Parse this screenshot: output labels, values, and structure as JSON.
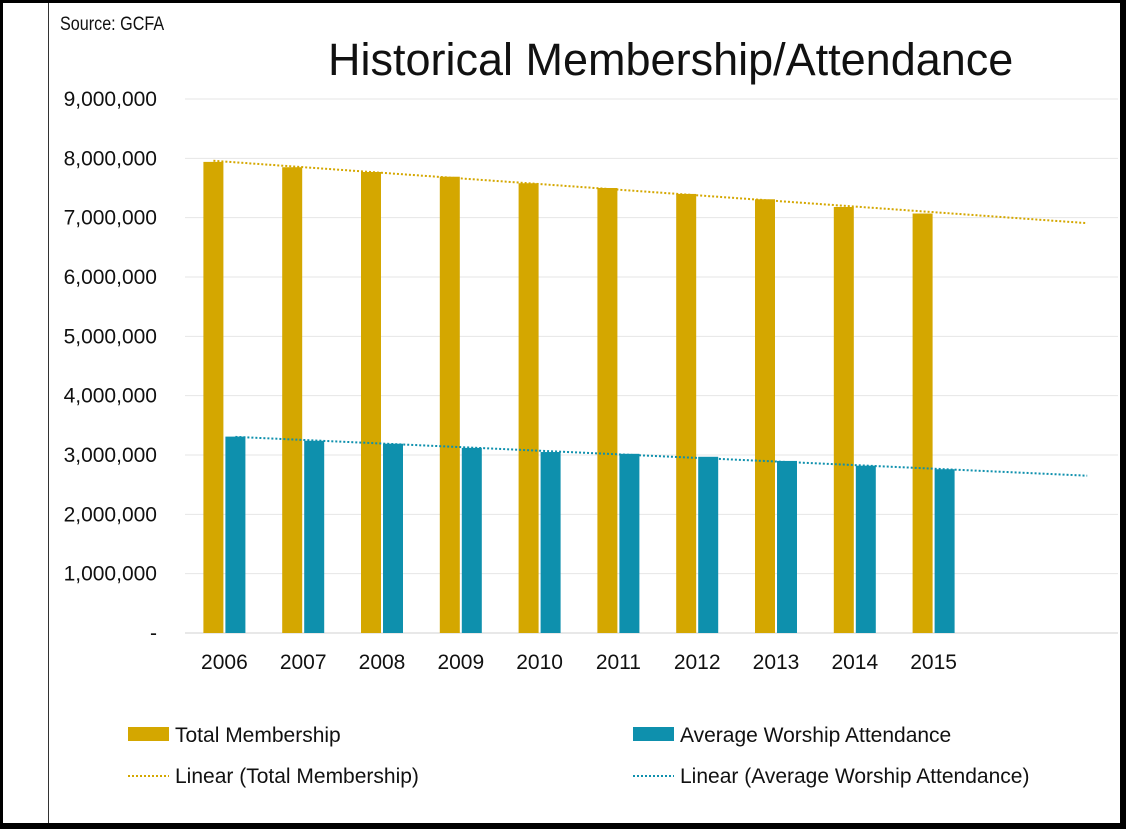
{
  "source": "Source: GCFA",
  "chart_data": {
    "type": "bar",
    "title": "Historical Membership/Attendance",
    "categories": [
      "2006",
      "2007",
      "2008",
      "2009",
      "2010",
      "2011",
      "2012",
      "2013",
      "2014",
      "2015"
    ],
    "series": [
      {
        "name": "Total Membership",
        "color": "#D4A700",
        "values": [
          7940000,
          7850000,
          7770000,
          7690000,
          7580000,
          7500000,
          7400000,
          7310000,
          7180000,
          7070000
        ]
      },
      {
        "name": "Average Worship Attendance",
        "color": "#0E90AD",
        "values": [
          3310000,
          3240000,
          3190000,
          3120000,
          3050000,
          3020000,
          2970000,
          2900000,
          2820000,
          2760000
        ]
      }
    ],
    "trendlines": [
      {
        "name": "Linear (Total Membership)",
        "series": "Total Membership",
        "type": "linear",
        "style": "dotted",
        "forecast_forward_periods": 2
      },
      {
        "name": "Linear (Average Worship Attendance)",
        "series": "Average Worship Attendance",
        "type": "linear",
        "style": "dotted",
        "forecast_forward_periods": 2
      }
    ],
    "ylim": [
      0,
      9000000
    ],
    "yticks": [
      "-",
      "1,000,000",
      "2,000,000",
      "3,000,000",
      "4,000,000",
      "5,000,000",
      "6,000,000",
      "7,000,000",
      "8,000,000",
      "9,000,000"
    ],
    "grid": true,
    "legend": "bottom"
  }
}
